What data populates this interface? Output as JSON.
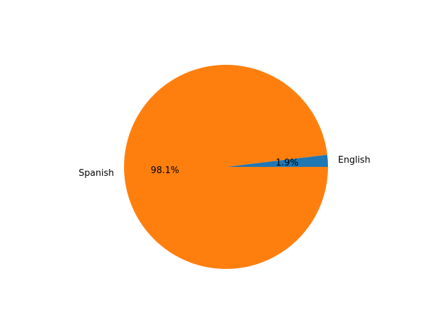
{
  "chart_data": {
    "type": "pie",
    "labels": [
      "English",
      "Spanish"
    ],
    "values": [
      1.9,
      98.1
    ],
    "percent_labels": [
      "1.9%",
      "98.1%"
    ],
    "colors": [
      "#1f77b4",
      "#ff7f0e"
    ],
    "start_angle_deg": 0,
    "direction": "counterclockwise",
    "legend": "none"
  }
}
